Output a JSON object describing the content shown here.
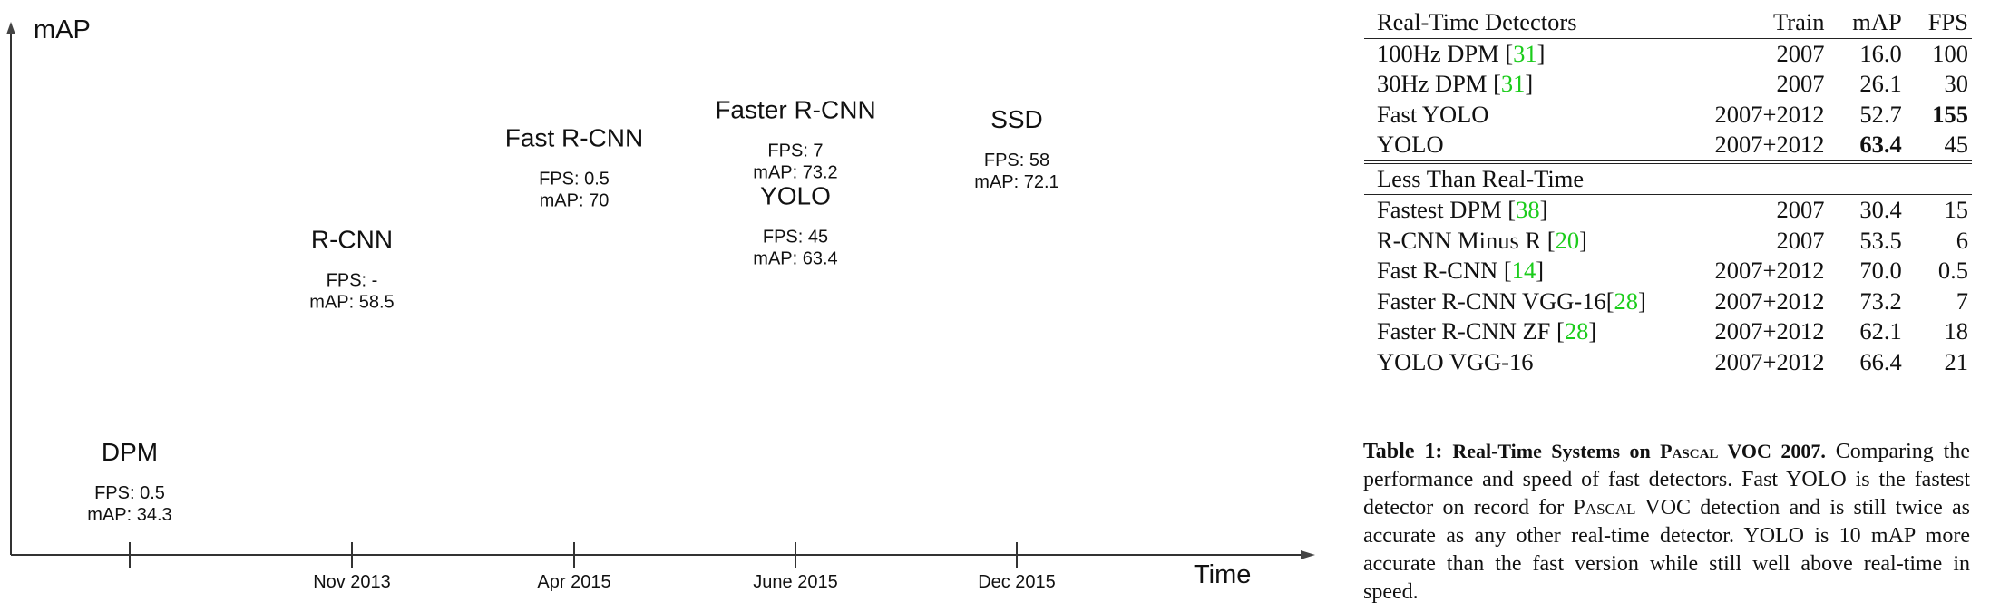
{
  "chart_data": {
    "type": "scatter",
    "title": "",
    "xlabel": "Time",
    "ylabel": "mAP",
    "x_ticks": [
      "",
      "Nov 2013",
      "Apr 2015",
      "June 2015",
      "Dec 2015"
    ],
    "ylim": [
      30,
      80
    ],
    "points": [
      {
        "name": "DPM",
        "tick_index": 0,
        "fps": "0.5",
        "map": 34.3,
        "fps_text": "FPS: 0.5",
        "map_text": "mAP: 34.3"
      },
      {
        "name": "R-CNN",
        "tick_index": 1,
        "fps": "-",
        "map": 58.5,
        "fps_text": "FPS: -",
        "map_text": "mAP: 58.5"
      },
      {
        "name": "Fast R-CNN",
        "tick_index": 2,
        "fps": "0.5",
        "map": 70,
        "fps_text": "FPS: 0.5",
        "map_text": "mAP: 70"
      },
      {
        "name": "Faster R-CNN",
        "tick_index": 3,
        "fps": "7",
        "map": 73.2,
        "fps_text": "FPS: 7",
        "map_text": "mAP: 73.2"
      },
      {
        "name": "YOLO",
        "tick_index": 3,
        "fps": "45",
        "map": 63.4,
        "fps_text": "FPS: 45",
        "map_text": "mAP: 63.4"
      },
      {
        "name": "SSD",
        "tick_index": 4,
        "fps": "58",
        "map": 72.1,
        "fps_text": "FPS: 58",
        "map_text": "mAP: 72.1"
      }
    ]
  },
  "table": {
    "headers": {
      "name": "Real-Time Detectors",
      "train": "Train",
      "map": "mAP",
      "fps": "FPS"
    },
    "realtime_rows": [
      {
        "name": "100Hz DPM [",
        "cite": "31",
        "close": "]",
        "train": "2007",
        "map": "16.0",
        "fps": "100"
      },
      {
        "name": "30Hz DPM [",
        "cite": "31",
        "close": "]",
        "train": "2007",
        "map": "26.1",
        "fps": "30"
      },
      {
        "name": "Fast YOLO",
        "cite": "",
        "close": "",
        "train": "2007+2012",
        "map": "52.7",
        "fps": "155"
      },
      {
        "name": "YOLO",
        "cite": "",
        "close": "",
        "train": "2007+2012",
        "map": "63.4",
        "fps": "45"
      }
    ],
    "section2_title": "Less Than Real-Time",
    "slow_rows": [
      {
        "name": "Fastest DPM [",
        "cite": "38",
        "close": "]",
        "train": "2007",
        "map": "30.4",
        "fps": "15"
      },
      {
        "name": "R-CNN Minus R [",
        "cite": "20",
        "close": "]",
        "train": "2007",
        "map": "53.5",
        "fps": "6"
      },
      {
        "name": "Fast R-CNN [",
        "cite": "14",
        "close": "]",
        "train": "2007+2012",
        "map": "70.0",
        "fps": "0.5"
      },
      {
        "name": "Faster R-CNN VGG-16[",
        "cite": "28",
        "close": "]",
        "train": "2007+2012",
        "map": "73.2",
        "fps": "7"
      },
      {
        "name": "Faster R-CNN ZF [",
        "cite": "28",
        "close": "]",
        "train": "2007+2012",
        "map": "62.1",
        "fps": "18"
      },
      {
        "name": "YOLO VGG-16",
        "cite": "",
        "close": "",
        "train": "2007+2012",
        "map": "66.4",
        "fps": "21"
      }
    ],
    "cite_color": "#1bcc1b"
  },
  "caption": {
    "label": "Table 1:",
    "title_a": "Real-Time Systems on ",
    "title_sc": "Pascal",
    "title_b": " VOC 2007.",
    "text_a": " Comparing the performance and speed of fast detectors. Fast YOLO is the fastest detector on record for ",
    "text_sc": "Pascal",
    "text_b": " VOC detection and is still twice as accurate as any other real-time detector. YOLO is 10 mAP more accurate than the fast version while still well above real-time in speed."
  }
}
